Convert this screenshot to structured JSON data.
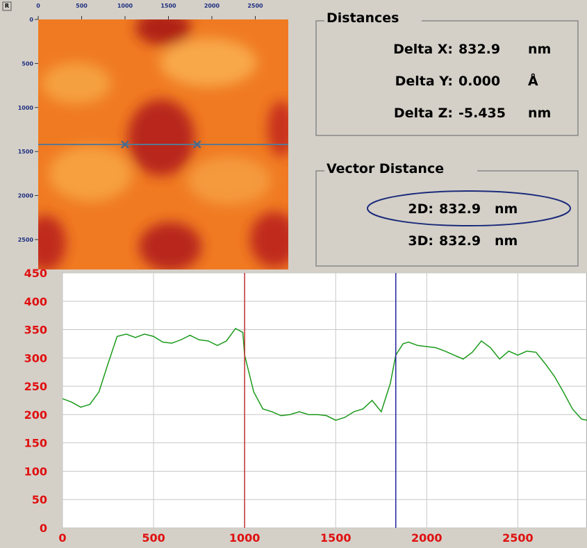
{
  "image": {
    "button": "R",
    "xlim": [
      0,
      2880
    ],
    "ylim": [
      0,
      2840
    ],
    "xticks": [
      0,
      500,
      1000,
      1500,
      2000,
      2500
    ],
    "yticks": [
      0,
      500,
      1000,
      1500,
      2000,
      2500
    ]
  },
  "distances": {
    "title": "Distances",
    "rows": [
      [
        "Delta X:",
        "832.9",
        "nm"
      ],
      [
        "Delta Y:",
        "0.000",
        "Å"
      ],
      [
        "Delta Z:",
        "-5.435",
        "nm"
      ]
    ]
  },
  "vector_distance": {
    "title": "Vector Distance",
    "rows": [
      [
        "2D:",
        "832.9",
        "nm"
      ],
      [
        "3D:",
        "832.9",
        "nm"
      ]
    ]
  },
  "chart_data": {
    "type": "line",
    "x": [
      0,
      50,
      100,
      150,
      200,
      250,
      300,
      350,
      400,
      450,
      500,
      550,
      600,
      650,
      700,
      750,
      800,
      850,
      900,
      950,
      990,
      1000,
      1050,
      1100,
      1150,
      1200,
      1250,
      1300,
      1350,
      1400,
      1450,
      1500,
      1550,
      1600,
      1650,
      1700,
      1750,
      1800,
      1830,
      1870,
      1900,
      1950,
      2000,
      2050,
      2100,
      2150,
      2200,
      2250,
      2300,
      2350,
      2400,
      2450,
      2500,
      2550,
      2600,
      2650,
      2700,
      2750,
      2800,
      2850,
      2880
    ],
    "series": [
      {
        "color": "#1a9a1a",
        "values": [
          228,
          222,
          213,
          218,
          240,
          290,
          338,
          342,
          336,
          342,
          338,
          328,
          326,
          332,
          340,
          332,
          330,
          322,
          330,
          352,
          345,
          305,
          240,
          210,
          205,
          198,
          200,
          205,
          200,
          200,
          198,
          190,
          195,
          205,
          210,
          225,
          205,
          255,
          305,
          325,
          328,
          322,
          320,
          318,
          312,
          305,
          298,
          310,
          330,
          318,
          298,
          312,
          305,
          312,
          310,
          290,
          268,
          240,
          210,
          192,
          190
        ]
      }
    ],
    "cursors": [
      {
        "x": 1000,
        "color": "#c03030"
      },
      {
        "x": 1830,
        "color": "#22229a"
      }
    ],
    "xlim": [
      0,
      2880
    ],
    "ylim": [
      0,
      450
    ],
    "xticks": [
      0,
      500,
      1000,
      1500,
      2000,
      2500
    ],
    "yticks": [
      0,
      50,
      100,
      150,
      200,
      250,
      300,
      350,
      400,
      450
    ],
    "grid": true
  }
}
